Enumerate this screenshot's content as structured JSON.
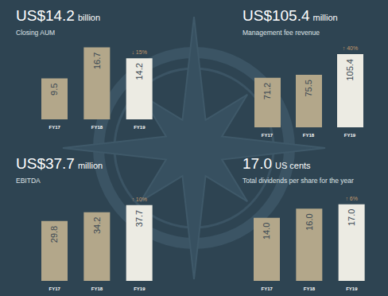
{
  "chart_data": [
    {
      "type": "bar",
      "title": "US$14.2 billion",
      "subtitle": "Closing AUM",
      "annotation": "↓ 15%",
      "categories": [
        "FY17",
        "FY18",
        "FY19"
      ],
      "values": [
        9.5,
        16.7,
        14.2
      ],
      "colors": [
        "#b3a78a",
        "#b3a78a",
        "#ecebe3"
      ],
      "ylim": [
        0,
        17
      ],
      "data_labels": true,
      "tick_labels": "x"
    },
    {
      "type": "bar",
      "title": "US$105.4 million",
      "subtitle": "Management fee revenue",
      "annotation": "↑ 40%",
      "categories": [
        "FY17",
        "FY18",
        "FY19"
      ],
      "values": [
        71.2,
        75.5,
        105.4
      ],
      "colors": [
        "#b3a78a",
        "#b3a78a",
        "#ecebe3"
      ],
      "ylim": [
        0,
        110
      ],
      "data_labels": true,
      "tick_labels": "x"
    },
    {
      "type": "bar",
      "title": "US$37.7 million",
      "subtitle": "EBITDA",
      "annotation": "↑ 10%",
      "categories": [
        "FY17",
        "FY18",
        "FY19"
      ],
      "values": [
        29.8,
        34.2,
        37.7
      ],
      "colors": [
        "#b3a78a",
        "#b3a78a",
        "#ecebe3"
      ],
      "ylim": [
        0,
        40
      ],
      "data_labels": true,
      "tick_labels": "x"
    },
    {
      "type": "bar",
      "title": "17.0 US cents",
      "subtitle": "Total dividends per share for the year",
      "annotation": "↑ 6%",
      "categories": [
        "FY17",
        "FY18",
        "FY19"
      ],
      "values": [
        14,
        16,
        17
      ],
      "value_labels": [
        "14.0",
        "16.0",
        "17.0"
      ],
      "colors": [
        "#b3a78a",
        "#b3a78a",
        "#ecebe3"
      ],
      "ylim": [
        0,
        18
      ],
      "data_labels": true,
      "tick_labels": "x"
    }
  ]
}
